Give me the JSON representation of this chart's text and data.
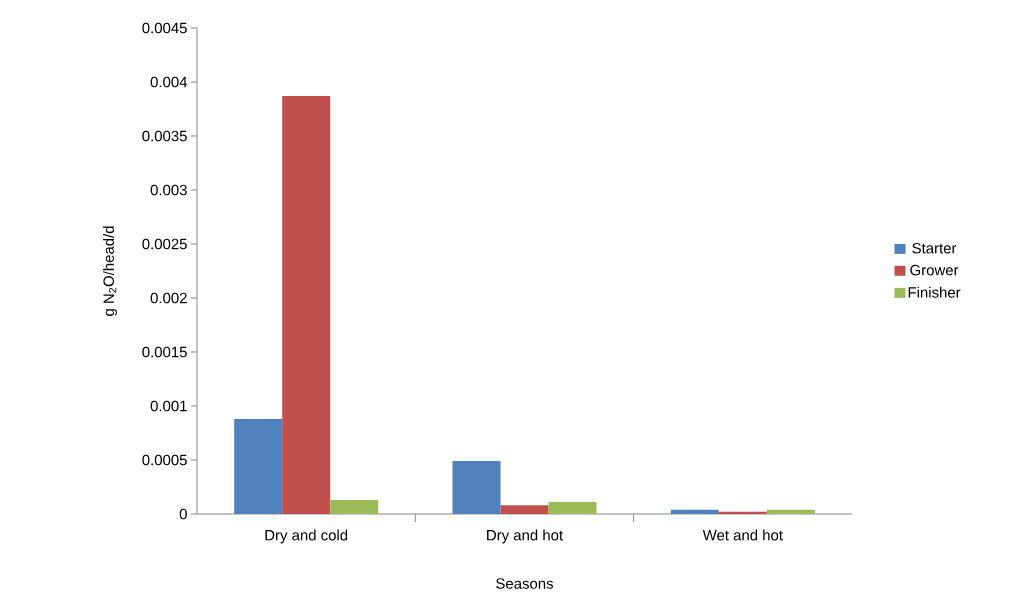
{
  "chart_data": {
    "type": "bar",
    "xlabel": "Seasons",
    "ylabel": "g N$_{2}$O/head/d",
    "categories": [
      "Dry and cold",
      "Dry and hot",
      "Wet and hot"
    ],
    "series": [
      {
        "name": "Starter",
        "color": "#4f81bd",
        "values": [
          0.00088,
          0.00049,
          4e-05
        ]
      },
      {
        "name": "Grower",
        "color": "#c0504d",
        "values": [
          0.00387,
          8e-05,
          2e-05
        ]
      },
      {
        "name": "Finisher",
        "color": "#9bbb59",
        "values": [
          0.00013,
          0.00011,
          4e-05
        ]
      }
    ],
    "ylim": [
      0,
      0.0045
    ],
    "yticks": [
      0,
      0.0005,
      0.001,
      0.0015,
      0.002,
      0.0025,
      0.003,
      0.0035,
      0.004,
      0.0045
    ],
    "grid": false,
    "legend": "right"
  }
}
